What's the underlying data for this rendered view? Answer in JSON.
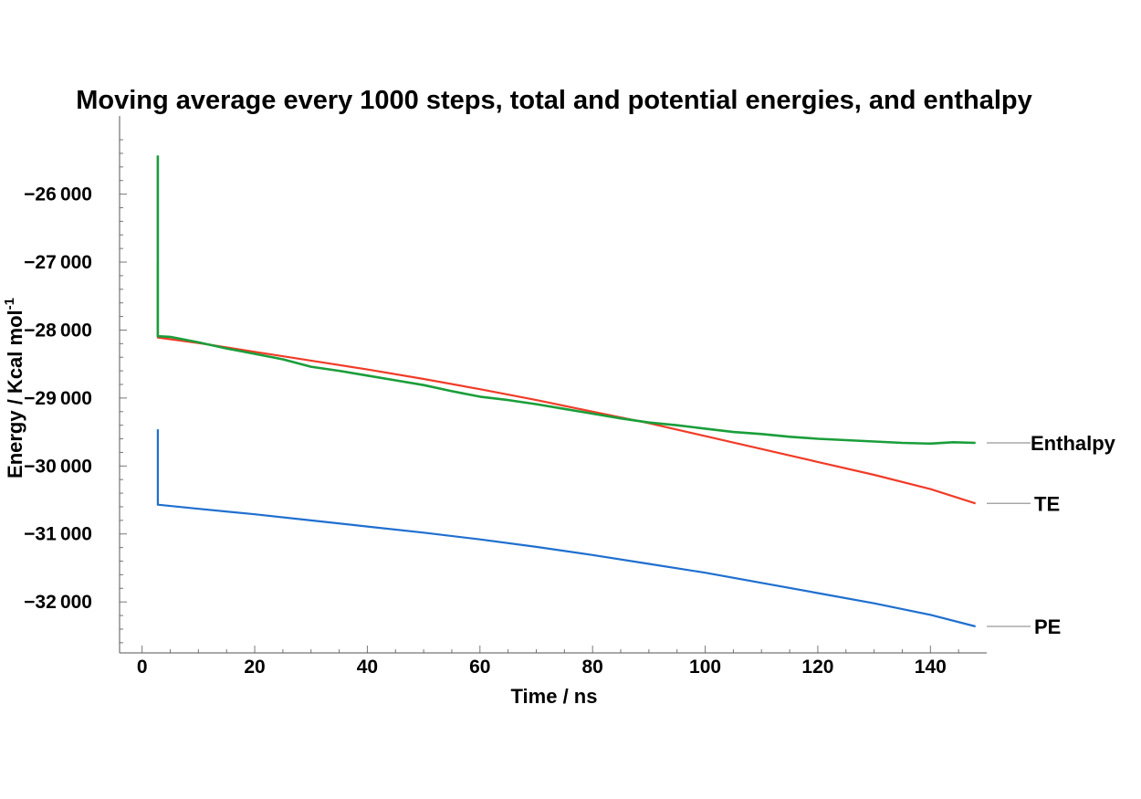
{
  "chart_data": {
    "type": "line",
    "title": "Moving average every 1000 steps, total and potential energies, and enthalpy",
    "xlabel": "Time / ns",
    "ylabel": "Energy / Kcal mol",
    "ylabel_superscript": "-1",
    "xlim": [
      -4,
      150
    ],
    "ylim": [
      -32750,
      -24850
    ],
    "x_ticks": [
      0,
      20,
      40,
      60,
      80,
      100,
      120,
      140
    ],
    "x_tick_labels": [
      "0",
      "20",
      "40",
      "60",
      "80",
      "100",
      "120",
      "140"
    ],
    "y_ticks": [
      -26000,
      -27000,
      -28000,
      -29000,
      -30000,
      -31000,
      -32000
    ],
    "y_tick_labels": [
      "−26 000",
      "−27 000",
      "−28 000",
      "−29 000",
      "−30 000",
      "−31 000",
      "−32 000"
    ],
    "grid": false,
    "legend": "right-end labels",
    "series": [
      {
        "name": "Enthalpy",
        "color": "#1a9e3a",
        "points": [
          [
            2.8,
            -25430
          ],
          [
            2.8,
            -28090
          ],
          [
            5,
            -28100
          ],
          [
            10,
            -28180
          ],
          [
            15,
            -28270
          ],
          [
            20,
            -28350
          ],
          [
            25,
            -28430
          ],
          [
            30,
            -28540
          ],
          [
            35,
            -28600
          ],
          [
            40,
            -28670
          ],
          [
            45,
            -28740
          ],
          [
            50,
            -28810
          ],
          [
            55,
            -28900
          ],
          [
            60,
            -28980
          ],
          [
            65,
            -29030
          ],
          [
            70,
            -29090
          ],
          [
            75,
            -29160
          ],
          [
            80,
            -29230
          ],
          [
            85,
            -29300
          ],
          [
            90,
            -29360
          ],
          [
            95,
            -29400
          ],
          [
            100,
            -29450
          ],
          [
            105,
            -29500
          ],
          [
            110,
            -29530
          ],
          [
            115,
            -29570
          ],
          [
            120,
            -29600
          ],
          [
            125,
            -29620
          ],
          [
            130,
            -29640
          ],
          [
            135,
            -29660
          ],
          [
            140,
            -29670
          ],
          [
            144,
            -29650
          ],
          [
            148,
            -29660
          ]
        ]
      },
      {
        "name": "TE",
        "color": "#f03c28",
        "points": [
          [
            2.8,
            -27000
          ],
          [
            2.8,
            -28110
          ],
          [
            10,
            -28190
          ],
          [
            20,
            -28320
          ],
          [
            30,
            -28450
          ],
          [
            40,
            -28580
          ],
          [
            50,
            -28720
          ],
          [
            60,
            -28870
          ],
          [
            70,
            -29030
          ],
          [
            80,
            -29200
          ],
          [
            90,
            -29370
          ],
          [
            100,
            -29560
          ],
          [
            110,
            -29750
          ],
          [
            120,
            -29940
          ],
          [
            130,
            -30130
          ],
          [
            140,
            -30340
          ],
          [
            148,
            -30550
          ]
        ]
      },
      {
        "name": "PE",
        "color": "#1f6fcf",
        "points": [
          [
            2.8,
            -29460
          ],
          [
            2.8,
            -30570
          ],
          [
            10,
            -30630
          ],
          [
            20,
            -30710
          ],
          [
            30,
            -30800
          ],
          [
            40,
            -30890
          ],
          [
            50,
            -30980
          ],
          [
            60,
            -31080
          ],
          [
            70,
            -31190
          ],
          [
            80,
            -31310
          ],
          [
            90,
            -31440
          ],
          [
            100,
            -31570
          ],
          [
            110,
            -31720
          ],
          [
            120,
            -31870
          ],
          [
            130,
            -32020
          ],
          [
            140,
            -32190
          ],
          [
            148,
            -32360
          ]
        ]
      }
    ]
  }
}
